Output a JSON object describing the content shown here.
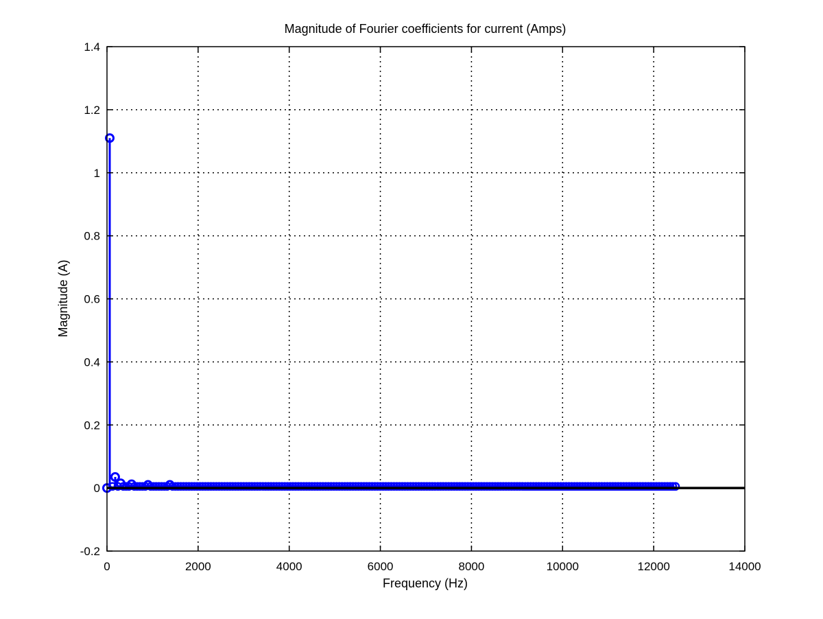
{
  "chart_data": {
    "type": "stem",
    "title": "Magnitude of Fourier coefficients for current (Amps)",
    "xlabel": "Frequency (Hz)",
    "ylabel": "Magnitude (A)",
    "xlim": [
      0,
      14000
    ],
    "ylim": [
      -0.2,
      1.4
    ],
    "xticks": [
      0,
      2000,
      4000,
      6000,
      8000,
      10000,
      12000,
      14000
    ],
    "yticks": [
      -0.2,
      0,
      0.2,
      0.4,
      0.6,
      0.8,
      1,
      1.2,
      1.4
    ],
    "xtick_labels": [
      "0",
      "2000",
      "4000",
      "6000",
      "8000",
      "10000",
      "12000",
      "14000"
    ],
    "ytick_labels": [
      "-0.2",
      "0",
      "0.2",
      "0.4",
      "0.6",
      "0.8",
      "1",
      "1.2",
      "1.4"
    ],
    "grid": true,
    "series_color": "#0000ff",
    "baseline_color": "#000000",
    "series": [
      {
        "harmonic_spacing": 60,
        "x_max": 12500,
        "points": [
          {
            "x": 0,
            "y": 0.0
          },
          {
            "x": 60,
            "y": 1.11
          },
          {
            "x": 180,
            "y": 0.035
          },
          {
            "x": 300,
            "y": 0.015
          },
          {
            "x": 540,
            "y": 0.012
          },
          {
            "x": 900,
            "y": 0.01
          },
          {
            "x": 1380,
            "y": 0.01
          }
        ],
        "background_level": 0.005
      }
    ]
  }
}
